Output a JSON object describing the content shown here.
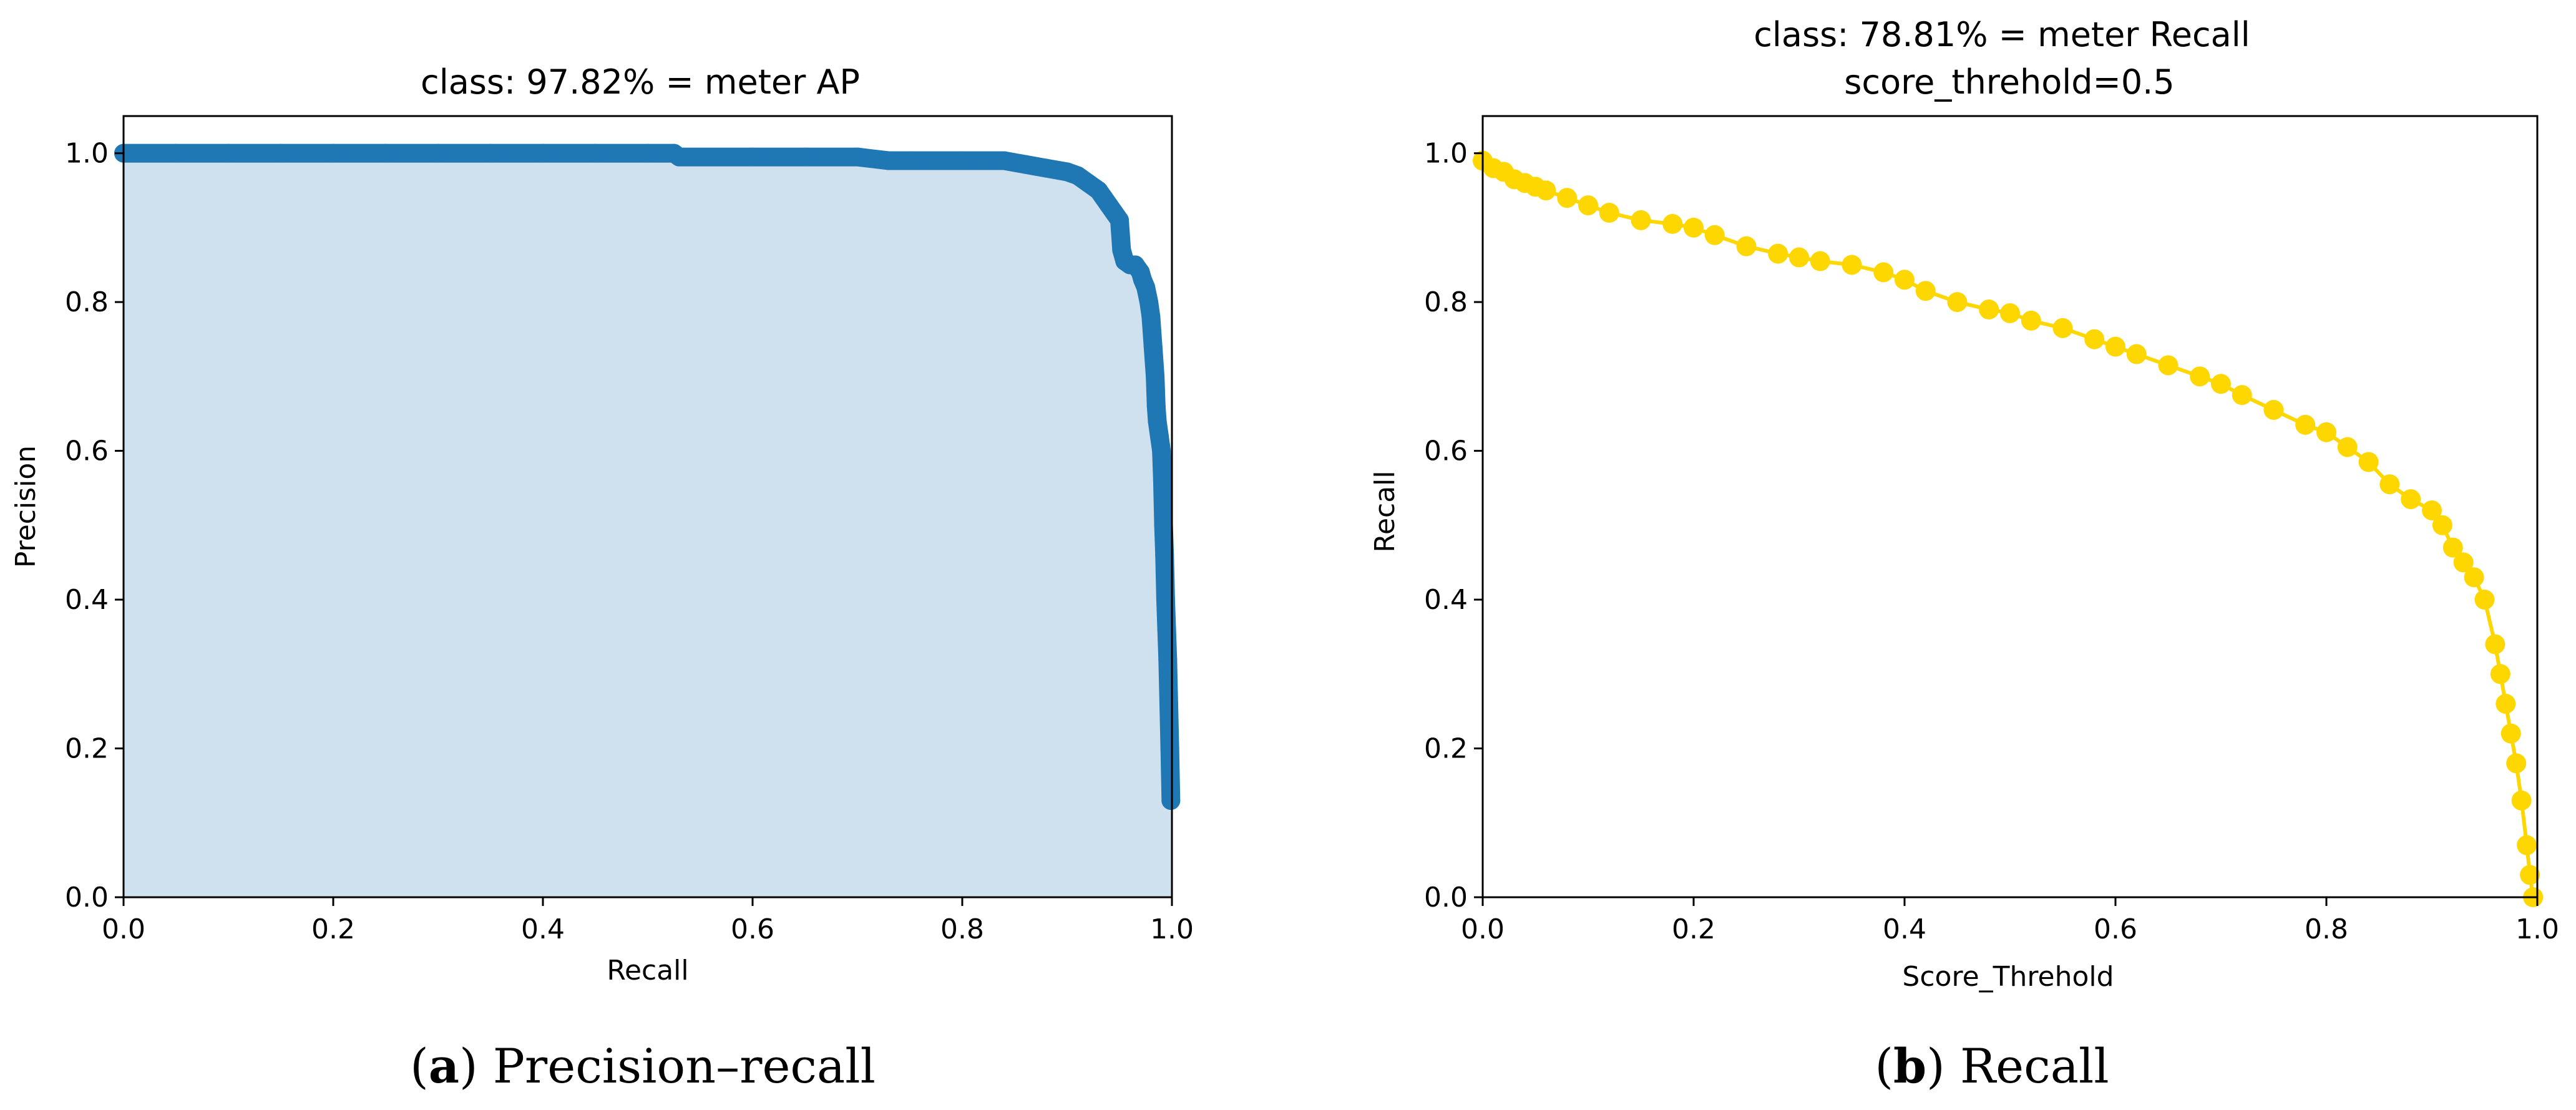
{
  "chart_data": [
    {
      "type": "area",
      "title": "class: 97.82% = meter AP",
      "xlabel": "Recall",
      "ylabel": "Precision",
      "xlim": [
        0,
        1
      ],
      "ylim": [
        0,
        1.05
      ],
      "xticks": [
        "0.0",
        "0.2",
        "0.4",
        "0.6",
        "0.8",
        "1.0"
      ],
      "yticks": [
        "0.0",
        "0.2",
        "0.4",
        "0.6",
        "0.8",
        "1.0"
      ],
      "grid": false,
      "legend": "none",
      "caption_letter": "a",
      "caption_text": " Precision–recall",
      "line_color": "#1f77b4",
      "fill_color": "#cfe1ef",
      "series": [
        {
          "x": [
            0.0,
            0.05,
            0.1,
            0.15,
            0.2,
            0.25,
            0.3,
            0.35,
            0.4,
            0.45,
            0.5,
            0.525,
            0.53,
            0.6,
            0.65,
            0.7,
            0.73,
            0.75,
            0.8,
            0.84,
            0.86,
            0.88,
            0.9,
            0.91,
            0.92,
            0.93,
            0.935,
            0.94,
            0.945,
            0.95,
            0.952,
            0.955,
            0.96,
            0.965,
            0.97,
            0.972,
            0.975,
            0.978,
            0.98,
            0.982,
            0.984,
            0.985,
            0.986,
            0.988,
            0.99,
            0.991,
            0.992,
            0.993,
            0.994,
            0.995,
            0.996,
            0.997,
            0.998,
            0.999
          ],
          "y": [
            1.0,
            1.0,
            1.0,
            1.0,
            1.0,
            1.0,
            1.0,
            1.0,
            1.0,
            1.0,
            1.0,
            1.0,
            0.995,
            0.995,
            0.995,
            0.995,
            0.99,
            0.99,
            0.99,
            0.99,
            0.985,
            0.98,
            0.975,
            0.97,
            0.96,
            0.95,
            0.94,
            0.93,
            0.92,
            0.91,
            0.87,
            0.855,
            0.85,
            0.85,
            0.84,
            0.83,
            0.82,
            0.8,
            0.78,
            0.74,
            0.7,
            0.66,
            0.64,
            0.62,
            0.6,
            0.56,
            0.5,
            0.46,
            0.4,
            0.36,
            0.32,
            0.26,
            0.2,
            0.13
          ]
        }
      ]
    },
    {
      "type": "scatter",
      "title": "class: 78.81% = meter Recall",
      "subtitle": "score_threhold=0.5",
      "xlabel": "Score_Threhold",
      "ylabel": "Recall",
      "xlim": [
        0,
        1
      ],
      "ylim": [
        0,
        1.05
      ],
      "xticks": [
        "0.0",
        "0.2",
        "0.4",
        "0.6",
        "0.8",
        "1.0"
      ],
      "yticks": [
        "0.0",
        "0.2",
        "0.4",
        "0.6",
        "0.8",
        "1.0"
      ],
      "grid": false,
      "legend": "none",
      "caption_letter": "b",
      "caption_text": " Recall",
      "line_color": "#ffd700",
      "series": [
        {
          "x": [
            0.0,
            0.01,
            0.02,
            0.03,
            0.04,
            0.05,
            0.06,
            0.08,
            0.1,
            0.12,
            0.15,
            0.18,
            0.2,
            0.22,
            0.25,
            0.28,
            0.3,
            0.32,
            0.35,
            0.38,
            0.4,
            0.42,
            0.45,
            0.48,
            0.5,
            0.52,
            0.55,
            0.58,
            0.6,
            0.62,
            0.65,
            0.68,
            0.7,
            0.72,
            0.75,
            0.78,
            0.8,
            0.82,
            0.84,
            0.86,
            0.88,
            0.9,
            0.91,
            0.92,
            0.93,
            0.94,
            0.95,
            0.96,
            0.965,
            0.97,
            0.975,
            0.98,
            0.985,
            0.99,
            0.993,
            0.996
          ],
          "y": [
            0.99,
            0.98,
            0.975,
            0.965,
            0.96,
            0.955,
            0.95,
            0.94,
            0.93,
            0.92,
            0.91,
            0.905,
            0.9,
            0.89,
            0.875,
            0.865,
            0.86,
            0.855,
            0.85,
            0.84,
            0.83,
            0.815,
            0.8,
            0.79,
            0.785,
            0.775,
            0.765,
            0.75,
            0.74,
            0.73,
            0.715,
            0.7,
            0.69,
            0.675,
            0.655,
            0.635,
            0.625,
            0.605,
            0.585,
            0.555,
            0.535,
            0.52,
            0.5,
            0.47,
            0.45,
            0.43,
            0.4,
            0.34,
            0.3,
            0.26,
            0.22,
            0.18,
            0.13,
            0.07,
            0.03,
            0.0
          ]
        }
      ]
    }
  ]
}
